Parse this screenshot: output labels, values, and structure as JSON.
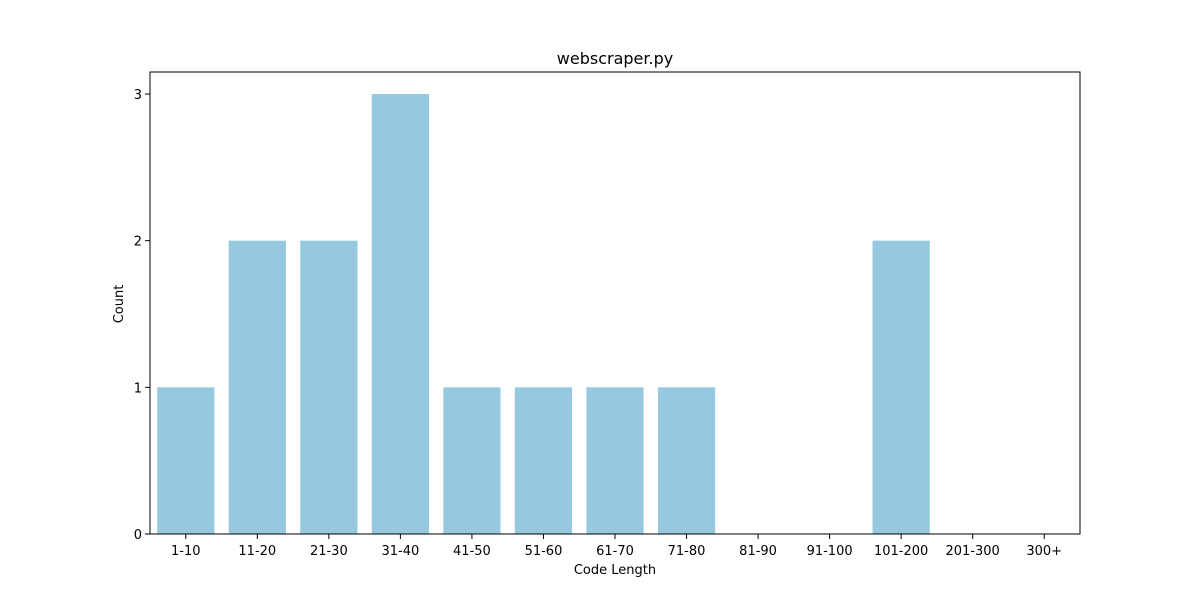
{
  "chart_data": {
    "type": "bar",
    "title": "webscraper.py",
    "xlabel": "Code Length",
    "ylabel": "Count",
    "categories": [
      "1-10",
      "11-20",
      "21-30",
      "31-40",
      "41-50",
      "51-60",
      "61-70",
      "71-80",
      "81-90",
      "91-100",
      "101-200",
      "201-300",
      "300+"
    ],
    "values": [
      1,
      2,
      2,
      3,
      1,
      1,
      1,
      1,
      0,
      0,
      2,
      0,
      0
    ],
    "yticks": [
      0,
      1,
      2,
      3
    ],
    "ylim": [
      0,
      3.15
    ],
    "grid": false,
    "legend": "none",
    "bar_color": "#96c9df",
    "axis_color": "#000000"
  }
}
